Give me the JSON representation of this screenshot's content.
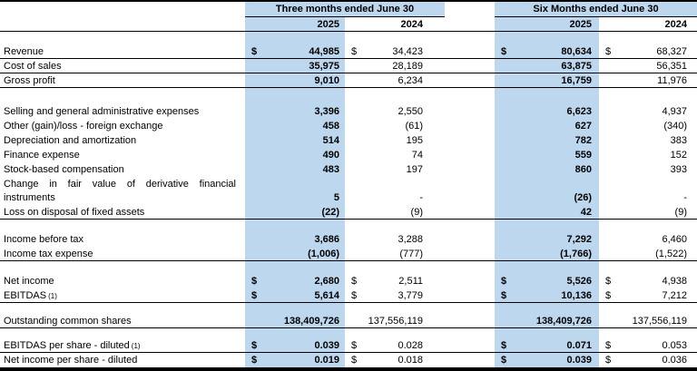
{
  "table": {
    "highlight_color": "#BDD7EE",
    "groups": [
      {
        "title": "Three months ended June 30",
        "years": [
          "2025",
          "2024"
        ]
      },
      {
        "title": "Six Months ended June 30",
        "years": [
          "2025",
          "2024"
        ]
      }
    ],
    "rows": [
      {
        "type": "spacer",
        "h": 14
      },
      {
        "type": "data",
        "label": "Revenue",
        "dollar": true,
        "values": [
          "44,985",
          "34,423",
          "80,634",
          "68,327"
        ],
        "rule": true
      },
      {
        "type": "data",
        "label": "Cost of sales",
        "values": [
          "35,975",
          "28,189",
          "63,875",
          "56,351"
        ],
        "rule": true
      },
      {
        "type": "data",
        "label": "Gross profit",
        "values": [
          "9,010",
          "6,234",
          "16,759",
          "11,976"
        ],
        "rule": true
      },
      {
        "type": "spacer",
        "h": 18
      },
      {
        "type": "data",
        "label": "Selling and general administrative expenses",
        "values": [
          "3,396",
          "2,550",
          "6,623",
          "4,937"
        ]
      },
      {
        "type": "data",
        "label": "Other (gain)/loss - foreign exchange",
        "values": [
          "458",
          "(61)",
          "627",
          "(340)"
        ]
      },
      {
        "type": "data",
        "label": "Depreciation and amortization",
        "values": [
          "514",
          "195",
          "782",
          "383"
        ]
      },
      {
        "type": "data",
        "label": "Finance expense",
        "values": [
          "490",
          "74",
          "559",
          "152"
        ]
      },
      {
        "type": "data",
        "label": "Stock-based compensation",
        "values": [
          "483",
          "197",
          "860",
          "393"
        ]
      },
      {
        "type": "data",
        "label": "Change in fair value of derivative financial instruments",
        "values": [
          "5",
          "-",
          "(26)",
          "-"
        ],
        "wrap": true
      },
      {
        "type": "data",
        "label": "Loss on disposal of fixed assets",
        "values": [
          "(22)",
          "(9)",
          "42",
          "(9)"
        ],
        "rule": true
      },
      {
        "type": "spacer",
        "h": 14
      },
      {
        "type": "data",
        "label": "Income before tax",
        "values": [
          "3,686",
          "3,288",
          "7,292",
          "6,460"
        ]
      },
      {
        "type": "data",
        "label": "Income tax expense",
        "values": [
          "(1,006)",
          "(777)",
          "(1,766)",
          "(1,522)"
        ],
        "rule": true
      },
      {
        "type": "spacer",
        "h": 14
      },
      {
        "type": "data",
        "label": "Net income",
        "dollar": true,
        "values": [
          "2,680",
          "2,511",
          "5,526",
          "4,938"
        ]
      },
      {
        "type": "data",
        "label": "EBITDAS",
        "sup": "(1)",
        "dollar": true,
        "values": [
          "5,614",
          "3,779",
          "10,136",
          "7,212"
        ],
        "rule": true
      },
      {
        "type": "spacer",
        "h": 12
      },
      {
        "type": "data",
        "label": "Outstanding common shares",
        "values": [
          "138,409,726",
          "137,556,119",
          "138,409,726",
          "137,556,119"
        ],
        "rule": true
      },
      {
        "type": "spacer",
        "h": 11
      },
      {
        "type": "data",
        "label": "EBITDAS per share - diluted",
        "sup": "(1)",
        "dollar": true,
        "values": [
          "0.039",
          "0.028",
          "0.071",
          "0.053"
        ],
        "rule": true
      },
      {
        "type": "data",
        "label": "Net income per share - diluted",
        "dollar": true,
        "values": [
          "0.019",
          "0.018",
          "0.039",
          "0.036"
        ]
      }
    ]
  }
}
